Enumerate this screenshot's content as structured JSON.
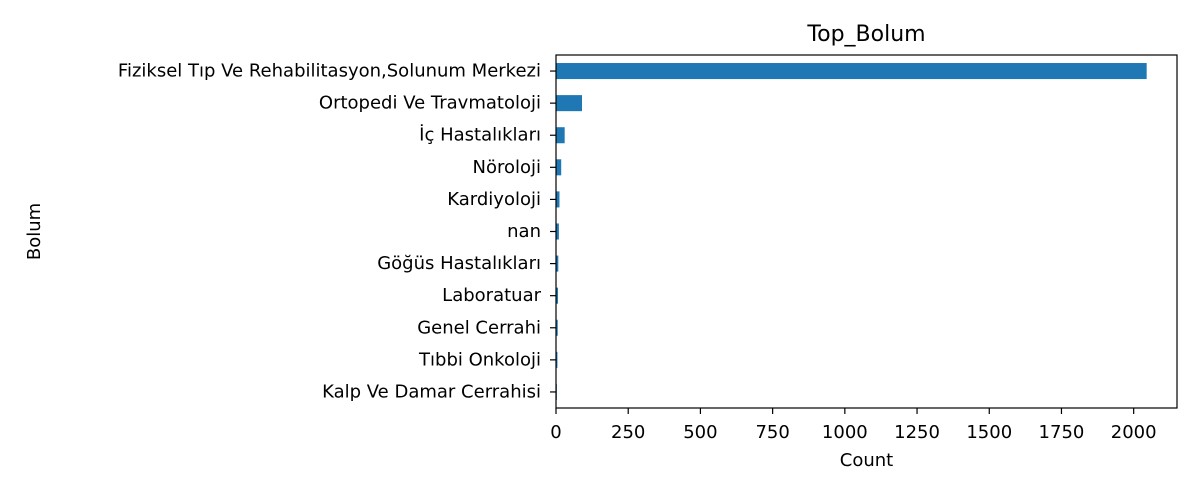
{
  "chart_data": {
    "type": "bar",
    "orientation": "horizontal",
    "title": "Top_Bolum",
    "xlabel": "Count",
    "ylabel": "Bolum",
    "categories": [
      "Fiziksel Tıp Ve Rehabilitasyon,Solunum Merkezi",
      "Ortopedi Ve Travmatoloji",
      "İç Hastalıkları",
      "Nöroloji",
      "Kardiyoloji",
      "nan",
      "Göğüs Hastalıkları",
      "Laboratuar",
      "Genel Cerrahi",
      "Tıbbi Onkoloji",
      "Kalp Ve Damar Cerrahisi"
    ],
    "values": [
      2045,
      90,
      30,
      18,
      12,
      10,
      8,
      7,
      6,
      5,
      3
    ],
    "xlim": [
      0,
      2150
    ],
    "xticks": [
      0,
      250,
      500,
      750,
      1000,
      1250,
      1500,
      1750,
      2000
    ],
    "grid": false,
    "bar_color": "#1f77b4"
  }
}
